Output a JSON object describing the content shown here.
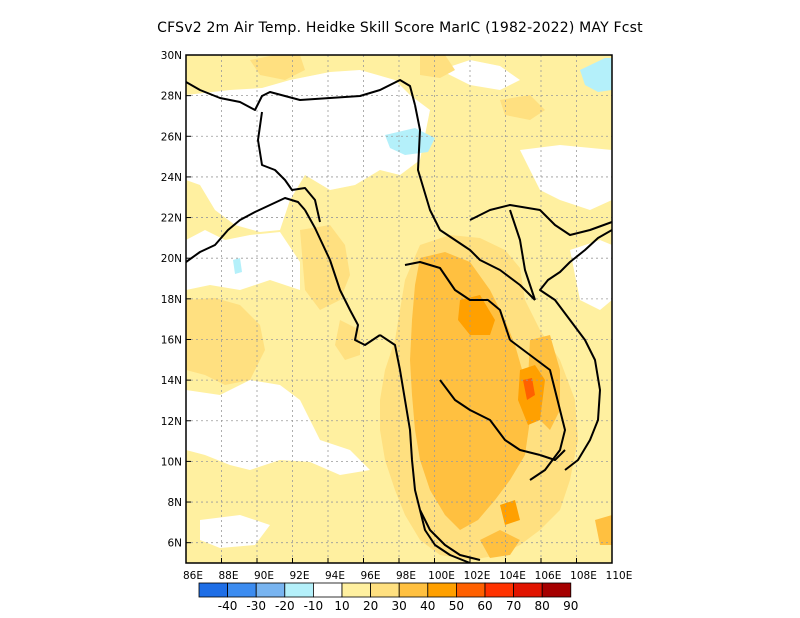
{
  "title": "CFSv2  2m Air Temp. Heidke Skill Score MarIC (1982-2022) MAY Fcst",
  "map": {
    "lon_range": [
      86,
      110
    ],
    "lat_range": [
      5,
      30
    ],
    "gridlines": true,
    "lat_labels": [
      "30N",
      "28N",
      "26N",
      "24N",
      "22N",
      "20N",
      "18N",
      "16N",
      "14N",
      "12N",
      "10N",
      "8N",
      "6N"
    ],
    "lat_values": [
      30,
      28,
      26,
      24,
      22,
      20,
      18,
      16,
      14,
      12,
      10,
      8,
      6
    ],
    "lon_labels": [
      "86E",
      "88E",
      "90E",
      "92E",
      "94E",
      "96E",
      "98E",
      "100E",
      "102E",
      "104E",
      "106E",
      "108E",
      "110E"
    ],
    "lon_values": [
      86,
      88,
      90,
      92,
      94,
      96,
      98,
      100,
      102,
      104,
      106,
      108,
      110
    ]
  },
  "colorbar": {
    "labels": [
      "-40",
      "-30",
      "-20",
      "-10",
      "10",
      "20",
      "30",
      "40",
      "50",
      "60",
      "70",
      "80",
      "90"
    ],
    "colors": [
      "#1e6ee6",
      "#3c8cf0",
      "#78b4f0",
      "#b4f0fa",
      "#ffffff",
      "#fff0a0",
      "#ffe080",
      "#ffc040",
      "#ffa000",
      "#ff6000",
      "#ff3200",
      "#e11400",
      "#a50000"
    ]
  }
}
